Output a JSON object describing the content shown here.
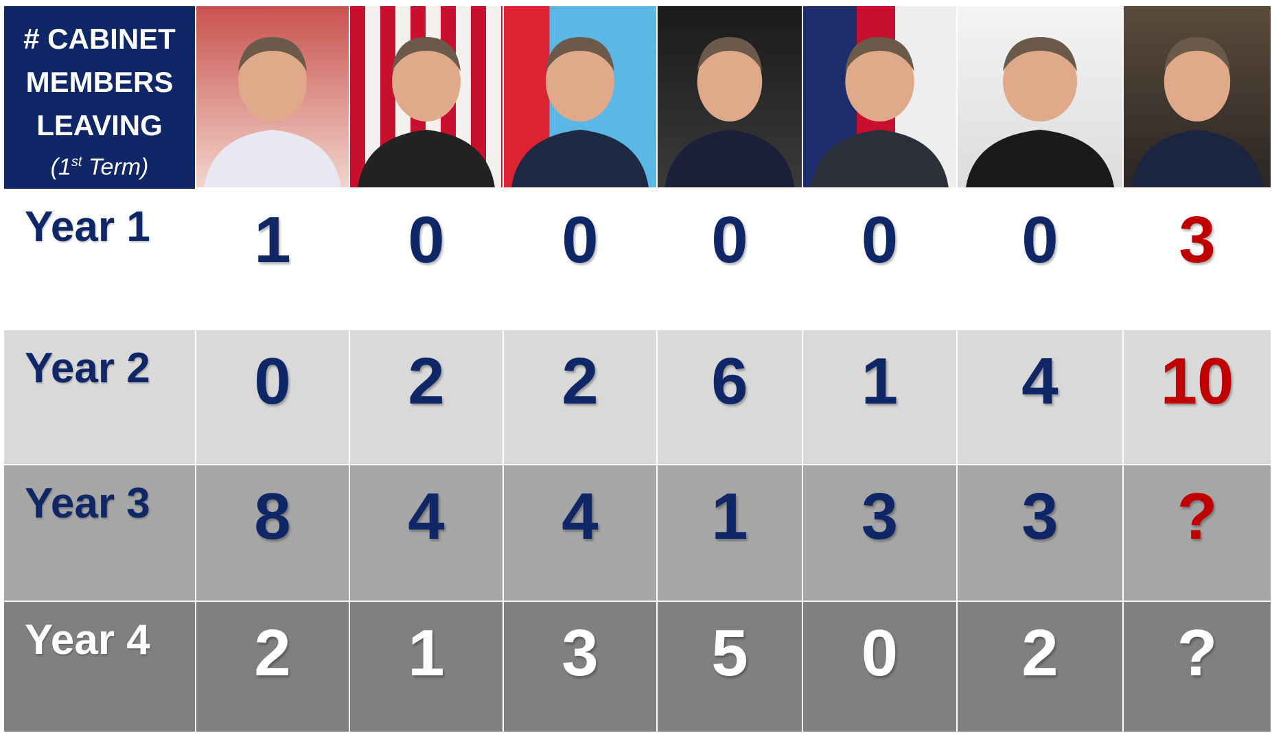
{
  "header": {
    "title_lines": [
      "# CABINET",
      "MEMBERS",
      "LEAVING"
    ],
    "subtitle": {
      "open": "(1",
      "sup": "st",
      "close": "Term)"
    }
  },
  "table": {
    "rows": [
      {
        "label": "Year 1",
        "values": [
          1,
          0,
          0,
          0,
          0,
          0,
          3
        ]
      },
      {
        "label": "Year 2",
        "values": [
          0,
          2,
          2,
          6,
          1,
          4,
          10
        ]
      },
      {
        "label": "Year 3",
        "values": [
          8,
          4,
          4,
          1,
          3,
          3,
          "?"
        ]
      },
      {
        "label": "Year 4",
        "values": [
          2,
          1,
          3,
          5,
          0,
          2,
          "?"
        ]
      }
    ]
  }
}
